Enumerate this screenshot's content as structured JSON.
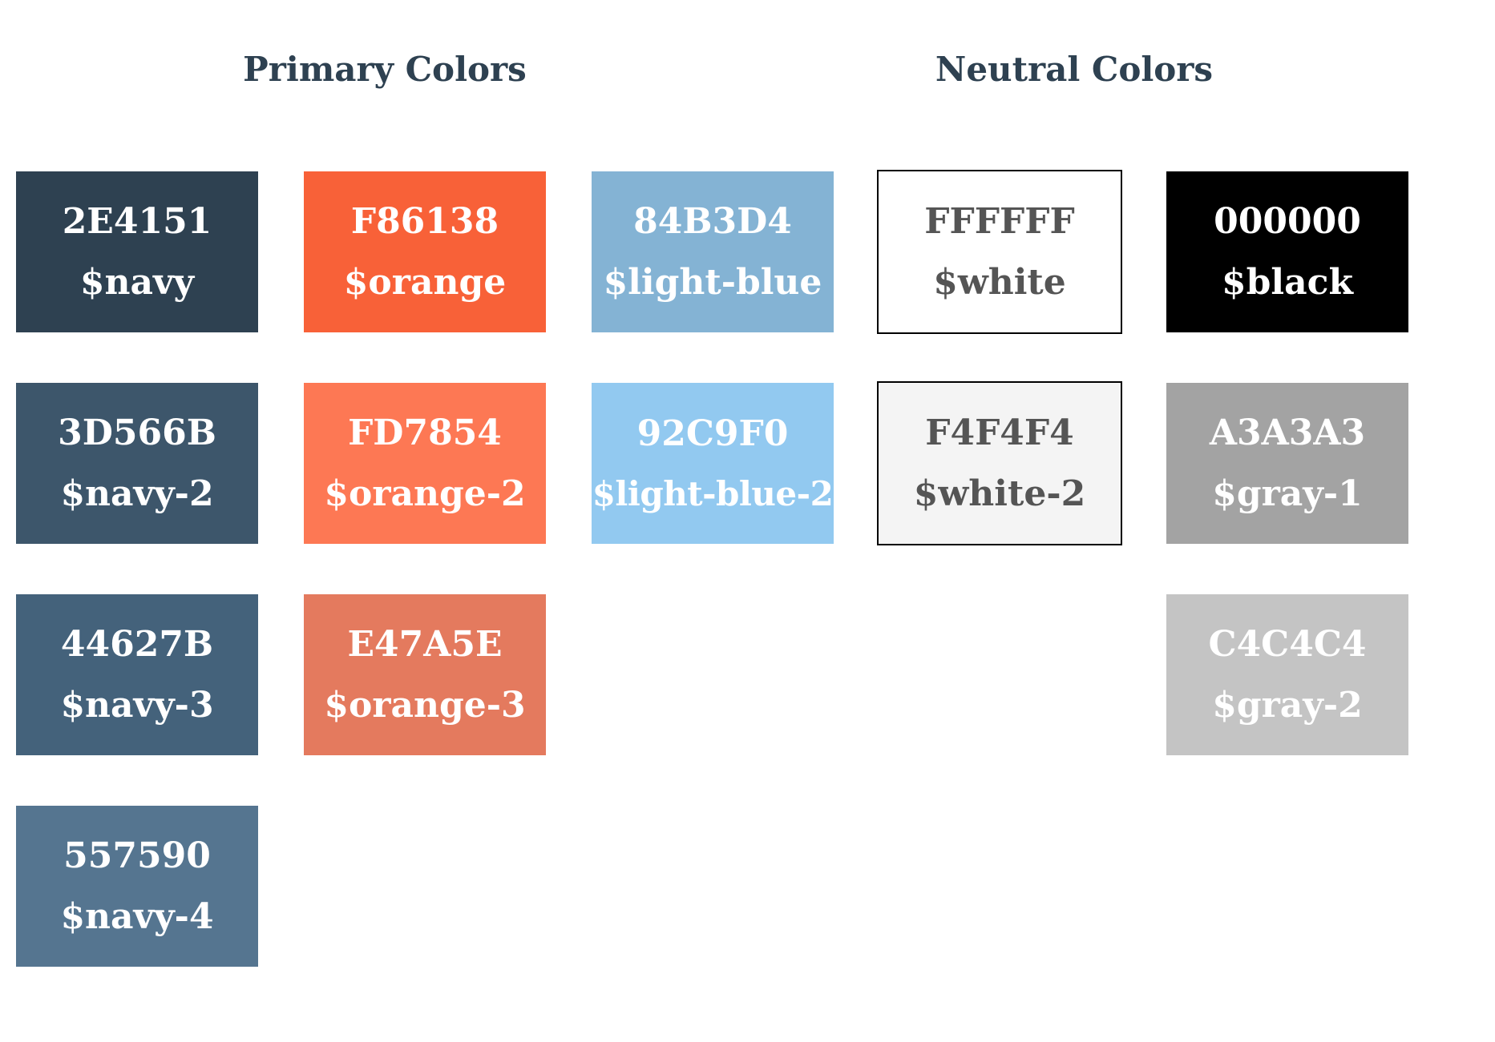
{
  "headings": {
    "primary": "Primary Colors",
    "neutral": "Neutral Colors"
  },
  "colors": {
    "navy": {
      "hex": "2E4151",
      "var": "$navy",
      "bg": "#2E4151",
      "text": "#FFFFFF"
    },
    "navy_2": {
      "hex": "3D566B",
      "var": "$navy-2",
      "bg": "#3D566B",
      "text": "#FFFFFF"
    },
    "navy_3": {
      "hex": "44627B",
      "var": "$navy-3",
      "bg": "#44627B",
      "text": "#FFFFFF"
    },
    "navy_4": {
      "hex": "557590",
      "var": "$navy-4",
      "bg": "#557590",
      "text": "#FFFFFF"
    },
    "orange": {
      "hex": "F86138",
      "var": "$orange",
      "bg": "#F86138",
      "text": "#FFFFFF"
    },
    "orange_2": {
      "hex": "FD7854",
      "var": "$orange-2",
      "bg": "#FD7854",
      "text": "#FFFFFF"
    },
    "orange_3": {
      "hex": "E47A5E",
      "var": "$orange-3",
      "bg": "#E47A5E",
      "text": "#FFFFFF"
    },
    "light_blue": {
      "hex": "84B3D4",
      "var": "$light-blue",
      "bg": "#84B3D4",
      "text": "#FFFFFF"
    },
    "light_blue_2": {
      "hex": "92C9F0",
      "var": "$light-blue-2",
      "bg": "#92C9F0",
      "text": "#FFFFFF"
    },
    "white": {
      "hex": "FFFFFF",
      "var": "$white",
      "bg": "#FFFFFF",
      "text": "#555555"
    },
    "white_2": {
      "hex": "F4F4F4",
      "var": "$white-2",
      "bg": "#F4F4F4",
      "text": "#555555"
    },
    "black": {
      "hex": "000000",
      "var": "$black",
      "bg": "#000000",
      "text": "#FFFFFF"
    },
    "gray_1": {
      "hex": "A3A3A3",
      "var": "$gray-1",
      "bg": "#A3A3A3",
      "text": "#FFFFFF"
    },
    "gray_2": {
      "hex": "C4C4C4",
      "var": "$gray-2",
      "bg": "#C4C4C4",
      "text": "#FFFFFF"
    }
  }
}
